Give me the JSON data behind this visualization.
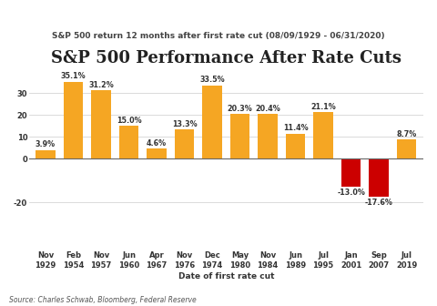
{
  "title": "S&P 500 Performance After Rate Cuts",
  "subtitle": "S&P 500 return 12 months after first rate cut (08/09/1929 - 06/31/2020)",
  "xlabel": "Date of first rate cut",
  "source": "Source: Charles Schwab, Bloomberg, Federal Reserve",
  "categories": [
    "Nov\n1929",
    "Feb\n1954",
    "Nov\n1957",
    "Jun\n1960",
    "Apr\n1967",
    "Nov\n1976",
    "Dec\n1974",
    "May\n1980",
    "Nov\n1984",
    "Jun\n1989",
    "Jul\n1995",
    "Jan\n2001",
    "Sep\n2007",
    "Jul\n2019"
  ],
  "values": [
    3.9,
    35.1,
    31.2,
    15.0,
    4.6,
    13.3,
    33.5,
    20.3,
    20.4,
    11.4,
    21.1,
    -13.0,
    -17.6,
    8.7
  ],
  "bar_colors": [
    "#F5A623",
    "#F5A623",
    "#F5A623",
    "#F5A623",
    "#F5A623",
    "#F5A623",
    "#F5A623",
    "#F5A623",
    "#F5A623",
    "#F5A623",
    "#F5A623",
    "#CC0000",
    "#CC0000",
    "#F5A623"
  ],
  "labels": [
    "3.9%",
    "35.1%",
    "31.2%",
    "15.0%",
    "4.6%",
    "13.3%",
    "33.5%",
    "20.3%",
    "20.4%",
    "11.4%",
    "21.1%",
    "-13.0%",
    "-17.6%",
    "8.7%"
  ],
  "ylim": [
    -42,
    42
  ],
  "yticks": [
    -20,
    0,
    10,
    20,
    30
  ],
  "background_color": "#FFFFFF",
  "title_fontsize": 13,
  "subtitle_fontsize": 6.5,
  "label_fontsize": 5.8,
  "axis_fontsize": 6.0,
  "source_fontsize": 5.5
}
